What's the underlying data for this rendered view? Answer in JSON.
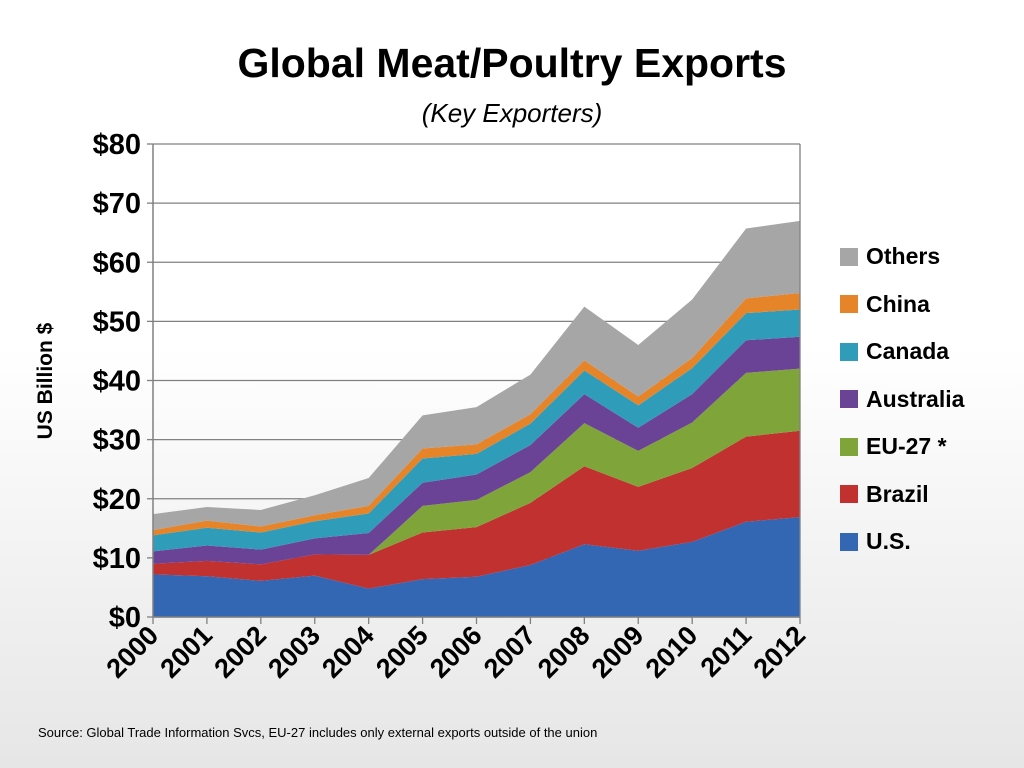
{
  "chart_data": {
    "type": "area",
    "stacked": true,
    "title": "Global Meat/Poultry Exports",
    "subtitle": "(Key Exporters)",
    "xlabel": "",
    "ylabel": "US Billion $",
    "ylim": [
      0,
      80
    ],
    "ytick_step": 10,
    "ytick_labels": [
      "$0",
      "$10",
      "$20",
      "$30",
      "$40",
      "$50",
      "$60",
      "$70",
      "$80"
    ],
    "grid": true,
    "legend_position": "right",
    "categories": [
      "2000",
      "2001",
      "2002",
      "2003",
      "2004",
      "2005",
      "2006",
      "2007",
      "2008",
      "2009",
      "2010",
      "2011",
      "2012"
    ],
    "series": [
      {
        "name": "U.S.",
        "color": "#3366b3",
        "values": [
          7.2,
          6.9,
          6.1,
          7.0,
          4.8,
          6.4,
          6.8,
          8.8,
          12.3,
          11.2,
          12.7,
          16.1,
          16.9
        ]
      },
      {
        "name": "Brazil",
        "color": "#c0312f",
        "values": [
          1.8,
          2.6,
          2.8,
          3.6,
          5.7,
          7.9,
          8.4,
          10.5,
          13.2,
          10.8,
          12.5,
          14.4,
          14.6
        ]
      },
      {
        "name": "EU-27 *",
        "color": "#7fa53a",
        "values": [
          0,
          0,
          0,
          0,
          0,
          4.5,
          4.6,
          5.2,
          7.3,
          6.1,
          7.7,
          10.8,
          10.5
        ]
      },
      {
        "name": "Australia",
        "color": "#6a4397",
        "values": [
          2.1,
          2.6,
          2.5,
          2.7,
          3.7,
          3.9,
          4.3,
          4.6,
          4.9,
          3.9,
          4.8,
          5.5,
          5.4
        ]
      },
      {
        "name": "Canada",
        "color": "#2f9dba",
        "values": [
          2.7,
          3.0,
          2.9,
          2.9,
          3.3,
          4.1,
          3.5,
          3.6,
          4.0,
          3.8,
          4.4,
          4.6,
          4.6
        ]
      },
      {
        "name": "China",
        "color": "#e6842a",
        "values": [
          0.9,
          1.2,
          1.0,
          1.0,
          1.3,
          1.7,
          1.6,
          1.6,
          1.7,
          1.5,
          1.7,
          2.5,
          2.8
        ]
      },
      {
        "name": "Others",
        "color": "#a6a6a6",
        "values": [
          2.7,
          2.3,
          2.8,
          3.4,
          4.7,
          5.6,
          6.3,
          6.7,
          9.1,
          8.7,
          9.9,
          11.8,
          12.2
        ]
      }
    ],
    "legend_order": [
      "Others",
      "China",
      "Canada",
      "Australia",
      "EU-27 *",
      "Brazil",
      "U.S."
    ],
    "source_note": "Source:  Global Trade Information Svcs, EU-27 includes only external exports outside of the union"
  }
}
